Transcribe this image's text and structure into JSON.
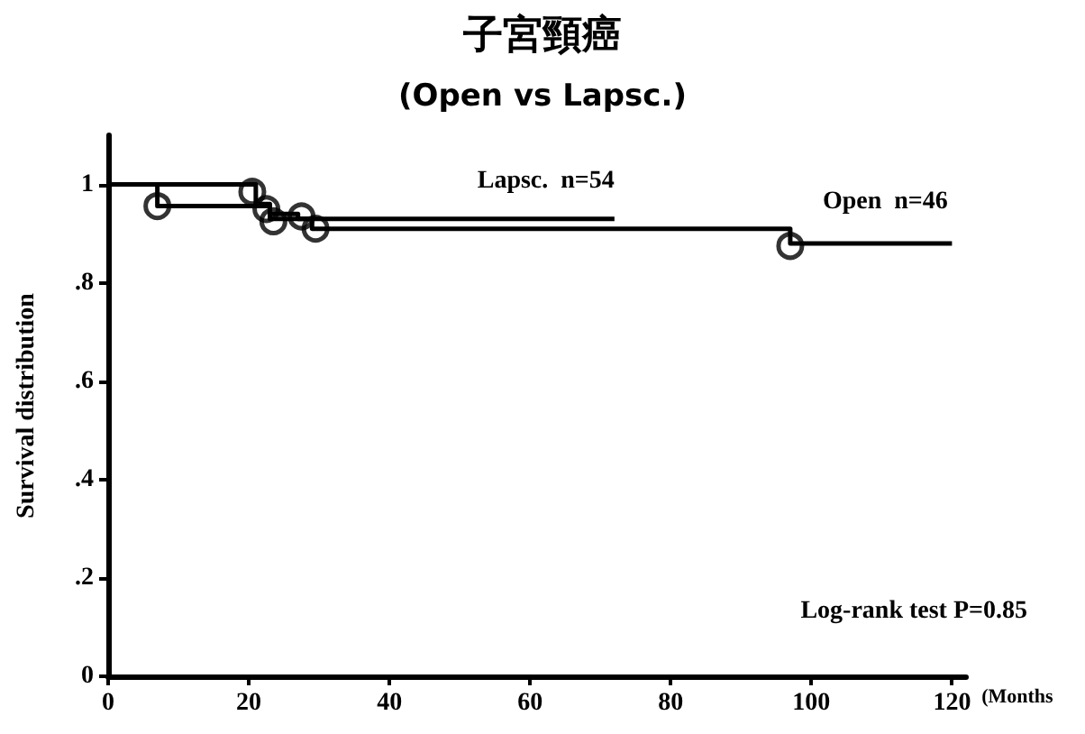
{
  "chart_data": {
    "type": "step",
    "title": "子宮頸癌",
    "subtitle": "(Open vs Lapsc.)",
    "xlabel": "(Months",
    "ylabel": "Survival distribution",
    "xlim": [
      0,
      122
    ],
    "xticks": [
      0,
      20,
      40,
      60,
      80,
      100,
      120
    ],
    "ylim": [
      0,
      1.1
    ],
    "yticks": [
      {
        "value": 0,
        "label": "0"
      },
      {
        "value": 0.2,
        "label": ".2"
      },
      {
        "value": 0.4,
        "label": ".4"
      },
      {
        "value": 0.6,
        "label": ".6"
      },
      {
        "value": 0.8,
        "label": ".8"
      },
      {
        "value": 1,
        "label": "1"
      }
    ],
    "grid": false,
    "legend": false,
    "line_style": "solid",
    "series": [
      {
        "name": "Lapsc.  n=54",
        "color": "#000000",
        "marker": "none",
        "x": [
          0,
          21,
          23,
          27,
          72
        ],
        "values": [
          1,
          0.96,
          0.94,
          0.93,
          0.93
        ]
      },
      {
        "name": "Open  n=46",
        "color": "#000000",
        "marker": "none",
        "x": [
          0,
          7,
          23,
          29,
          97,
          120
        ],
        "values": [
          1,
          0.956,
          0.93,
          0.91,
          0.88,
          0.88
        ]
      },
      {
        "type": "scatter",
        "color": "#000000",
        "marker": "circle",
        "x": [
          7,
          20.5,
          22.5,
          23.5,
          27.5,
          29.5,
          97
        ],
        "values": [
          0.956,
          0.985,
          0.95,
          0.925,
          0.935,
          0.91,
          0.875
        ]
      }
    ],
    "annotations": [
      "Log-rank test P=0.85"
    ]
  }
}
